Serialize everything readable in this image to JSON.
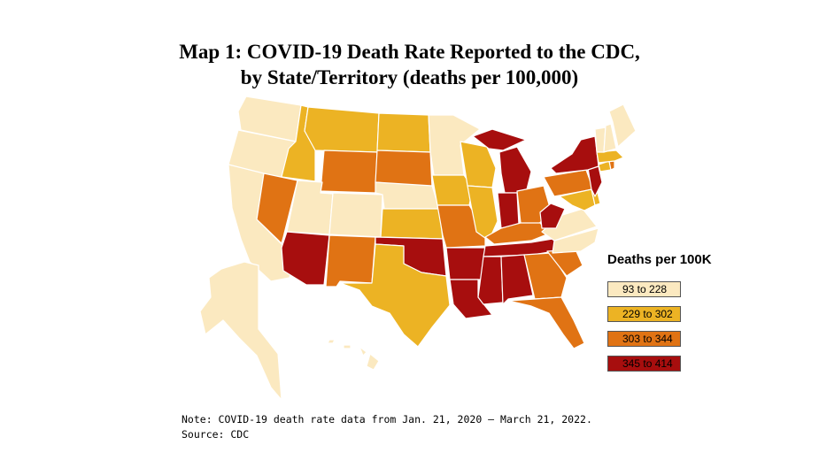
{
  "title": {
    "line1": "Map 1: COVID-19 Death Rate Reported to the CDC,",
    "line2": "by State/Territory (deaths per 100,000)"
  },
  "legend": {
    "title": "Deaths per 100K",
    "items": [
      {
        "label": "93 to 228",
        "color": "#fbe9c0"
      },
      {
        "label": "229 to 302",
        "color": "#ecb324"
      },
      {
        "label": "303 to 344",
        "color": "#e07314"
      },
      {
        "label": "345 to 414",
        "color": "#a70e0e"
      }
    ]
  },
  "note": {
    "line1": "Note: COVID-19 death rate data from Jan. 21, 2020 – March 21, 2022.",
    "line2": "Source: CDC"
  },
  "map_data": {
    "type": "choropleth",
    "region": "United States",
    "bins": [
      "93 to 228",
      "229 to 302",
      "303 to 344",
      "345 to 414"
    ],
    "state_bin": {
      "WA": 0,
      "OR": 0,
      "CA": 0,
      "UT": 0,
      "CO": 0,
      "NE": 0,
      "MN": 0,
      "AK": 0,
      "HI": 0,
      "VT": 0,
      "ME": 0,
      "NH": 0,
      "VA": 0,
      "NC": 0,
      "MT": 1,
      "ID": 1,
      "ND": 1,
      "KS": 1,
      "TX": 1,
      "IA": 1,
      "WI": 1,
      "IL": 1,
      "CT": 1,
      "MA": 1,
      "MD": 1,
      "DE": 1,
      "NV": 2,
      "WY": 2,
      "SD": 2,
      "NM": 2,
      "MO": 2,
      "KY": 2,
      "OH": 2,
      "PA": 2,
      "SC": 2,
      "GA": 2,
      "FL": 2,
      "RI": 2,
      "AZ": 3,
      "OK": 3,
      "AR": 3,
      "LA": 3,
      "MS": 3,
      "AL": 3,
      "TN": 3,
      "IN": 3,
      "MI": 3,
      "WV": 3,
      "NY": 3,
      "NJ": 3
    }
  }
}
